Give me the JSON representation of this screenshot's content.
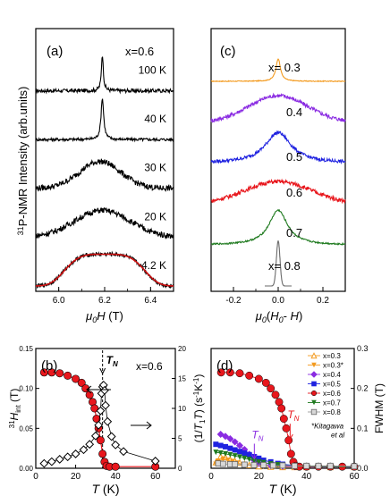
{
  "chart_data": [
    {
      "panel": "(a)",
      "type": "line",
      "annotation": "x=0.6",
      "xlabel": "μ0H (T)",
      "ylabel": "31P-NMR Intensity (arb.units)",
      "xlim": [
        5.9,
        6.5
      ],
      "xticks": [
        "6.0",
        "6.2",
        "6.4"
      ],
      "series": [
        {
          "name": "100 K",
          "color": "#000000",
          "center": 6.19,
          "width": 0.005,
          "offset": 4.0,
          "amp": 0.75,
          "noise": 0.04,
          "shape": "lorentz"
        },
        {
          "name": "40 K",
          "color": "#000000",
          "center": 6.19,
          "width": 0.007,
          "offset": 3.0,
          "amp": 0.85,
          "noise": 0.03,
          "shape": "lorentz"
        },
        {
          "name": "30 K",
          "color": "#000000",
          "center": 6.18,
          "width": 0.09,
          "offset": 2.0,
          "amp": 0.55,
          "noise": 0.06,
          "shape": "gauss"
        },
        {
          "name": "20 K",
          "color": "#000000",
          "center": 6.19,
          "width": 0.12,
          "offset": 1.0,
          "amp": 0.55,
          "noise": 0.06,
          "shape": "gauss"
        },
        {
          "name": "4.2 K",
          "color": "#000000",
          "center": 6.2,
          "width": 0.19,
          "offset": 0.0,
          "amp": 0.65,
          "noise": 0.04,
          "shape": "flat"
        }
      ],
      "fit": {
        "color": "#d01010",
        "label_of": "4.2 K"
      }
    },
    {
      "panel": "(c)",
      "type": "line",
      "xlabel": "μ0(H0- H)",
      "xlim": [
        -0.3,
        0.3
      ],
      "xticks": [
        "-0.2",
        "0.0",
        "0.2"
      ],
      "series": [
        {
          "name": "x= 0.3",
          "color": "#f39a1e",
          "center": 0.0,
          "width": 0.012,
          "offset": 5.0,
          "amp": 0.55,
          "noise": 0.01,
          "shape": "lorentz"
        },
        {
          "name": "0.4",
          "color": "#8a2be2",
          "center": 0.0,
          "width": 0.13,
          "offset": 4.0,
          "amp": 0.65,
          "noise": 0.05,
          "shape": "gauss"
        },
        {
          "name": "0.5",
          "color": "#1f22e0",
          "center": 0.0,
          "width": 0.07,
          "offset": 3.0,
          "amp": 0.75,
          "noise": 0.04,
          "shape": "lorentzwide"
        },
        {
          "name": "0.6",
          "color": "#e8171d",
          "center": 0.0,
          "width": 0.15,
          "offset": 2.0,
          "amp": 0.55,
          "noise": 0.05,
          "shape": "gauss"
        },
        {
          "name": "0.7",
          "color": "#1f7a1f",
          "center": 0.0,
          "width": 0.05,
          "offset": 1.0,
          "amp": 0.85,
          "noise": 0.02,
          "shape": "lorentzwide"
        },
        {
          "name": "x= 0.8",
          "color": "#6a6a6a",
          "center": 0.0,
          "width": 0.008,
          "offset": 0.0,
          "amp": 1.1,
          "noise": 0.0,
          "shape": "gauss",
          "xmin": -0.06,
          "xmax": 0.06
        }
      ]
    },
    {
      "panel": "(b)",
      "type": "scatter",
      "annotation": "x=0.6",
      "tn_label": "T",
      "tn_sub": "N",
      "xlabel": "T (K)",
      "ylabel_left": "31Hint (T)",
      "ylabel_right": "(1/T1T) (s-1K-1)",
      "xlim": [
        0,
        70
      ],
      "ylim_left": [
        0,
        0.15
      ],
      "ylim_right": [
        0,
        20
      ],
      "xticks": [
        "0",
        "20",
        "40",
        "60"
      ],
      "yticks_left": [
        "0.00",
        "0.05",
        "0.10",
        "0.15"
      ],
      "yticks_right": [
        "0",
        "5",
        "10",
        "15",
        "20"
      ],
      "tn_x": 33.5,
      "hint": {
        "x": [
          4.2,
          8,
          12,
          16,
          20,
          23,
          25,
          27,
          28.5,
          29.5,
          30.5,
          31.5,
          32.5,
          33.5,
          34.5,
          35.5,
          37,
          40,
          60
        ],
        "y": [
          0.12,
          0.12,
          0.119,
          0.116,
          0.112,
          0.107,
          0.1,
          0.092,
          0.083,
          0.075,
          0.062,
          0.05,
          0.035,
          0.018,
          0.008,
          0.003,
          0.002,
          0.002,
          0.002
        ],
        "color": "#e8171d"
      },
      "relax": {
        "x": [
          4.2,
          8,
          12,
          16,
          20,
          24,
          27,
          30,
          31.5,
          32.5,
          33,
          33.5,
          34,
          34.5,
          35,
          36,
          38,
          40,
          44,
          60
        ],
        "y": [
          0.8,
          1.1,
          1.5,
          1.9,
          2.4,
          3.1,
          4.0,
          5.4,
          7.2,
          9.6,
          12.5,
          13.6,
          13.9,
          13.0,
          10.5,
          7.8,
          5.3,
          3.9,
          2.8,
          1.2
        ]
      }
    },
    {
      "panel": "(d)",
      "type": "scatter",
      "xlabel": "T (K)",
      "ylabel_left": "(1/T1T) (s-1K-1)",
      "ylabel_right": "FWHM (T)",
      "xlim": [
        0,
        60
      ],
      "ylim_right": [
        0,
        0.3
      ],
      "xticks": [
        "0",
        "20",
        "40",
        "60"
      ],
      "yticks_right": [
        "0.0",
        "0.1",
        "0.2",
        "0.3"
      ],
      "tn_labels": [
        {
          "text": "T",
          "sub": "N",
          "x": 17,
          "y": 0.075,
          "color": "#8a2be2"
        },
        {
          "text": "T",
          "sub": "N",
          "x": 32,
          "y": 0.125,
          "color": "#e8171d"
        }
      ],
      "note": [
        "*Kitagawa",
        "et al"
      ],
      "series": [
        {
          "name": "x=0.3",
          "color": "#f39a1e",
          "marker": "triangle-up",
          "x": [
            2,
            4,
            6,
            8,
            10,
            12,
            14,
            16,
            20,
            25,
            30,
            35,
            40,
            50,
            60
          ],
          "y": [
            0.015,
            0.03,
            0.028,
            0.022,
            0.018,
            0.014,
            0.01,
            0.008,
            0.005,
            0.004,
            0.003,
            0.003,
            0.003,
            0.003,
            0.003
          ]
        },
        {
          "name": "x=0.3*",
          "color": "#f39a1e",
          "marker": "triangle-down",
          "x": [
            2,
            3,
            5,
            7,
            9,
            11,
            14,
            18,
            22,
            30,
            40
          ],
          "y": [
            0.01,
            0.018,
            0.022,
            0.02,
            0.017,
            0.013,
            0.009,
            0.006,
            0.005,
            0.004,
            0.003
          ]
        },
        {
          "name": "x=0.4",
          "color": "#8a2be2",
          "marker": "diamond",
          "x": [
            4,
            6,
            8,
            10,
            12,
            14,
            16,
            18,
            20,
            22,
            25,
            30,
            35,
            40,
            60
          ],
          "y": [
            0.085,
            0.08,
            0.074,
            0.066,
            0.057,
            0.047,
            0.035,
            0.02,
            0.012,
            0.009,
            0.007,
            0.005,
            0.004,
            0.003,
            0.003
          ]
        },
        {
          "name": "x=0.5",
          "color": "#1f22e0",
          "marker": "square",
          "x": [
            2,
            4,
            6,
            8,
            10,
            12,
            14,
            16,
            18,
            20,
            22,
            25,
            28,
            30,
            35,
            40,
            45,
            60
          ],
          "y": [
            0.06,
            0.057,
            0.054,
            0.05,
            0.046,
            0.042,
            0.038,
            0.034,
            0.029,
            0.025,
            0.02,
            0.016,
            0.012,
            0.01,
            0.007,
            0.005,
            0.004,
            0.003
          ]
        },
        {
          "name": "x=0.6",
          "color": "#e8171d",
          "marker": "circle",
          "x": [
            4.2,
            8,
            12,
            16,
            20,
            23,
            25,
            27,
            28.5,
            29.5,
            30.5,
            31.5,
            32.5,
            33.5,
            34.5,
            35.5,
            37,
            40,
            45,
            50,
            55,
            60
          ],
          "y": [
            0.24,
            0.24,
            0.238,
            0.232,
            0.224,
            0.214,
            0.2,
            0.184,
            0.166,
            0.15,
            0.124,
            0.1,
            0.07,
            0.036,
            0.016,
            0.006,
            0.004,
            0.004,
            0.004,
            0.004,
            0.004,
            0.004
          ]
        },
        {
          "name": "x=0.7",
          "color": "#1f7a1f",
          "marker": "triangle-down",
          "x": [
            2,
            4,
            6,
            8,
            10,
            12,
            14,
            16,
            18,
            20,
            22,
            25,
            28,
            30,
            35,
            40,
            50,
            60
          ],
          "y": [
            0.04,
            0.038,
            0.036,
            0.034,
            0.031,
            0.028,
            0.025,
            0.022,
            0.019,
            0.016,
            0.014,
            0.011,
            0.009,
            0.008,
            0.006,
            0.005,
            0.004,
            0.004
          ]
        },
        {
          "name": "x=0.8",
          "color": "#9a9a9a",
          "marker": "square-open",
          "x": [
            3,
            5,
            8,
            10,
            14,
            18,
            22,
            26,
            30,
            35,
            40,
            45,
            50,
            60
          ],
          "y": [
            0.012,
            0.011,
            0.01,
            0.01,
            0.009,
            0.008,
            0.008,
            0.007,
            0.007,
            0.006,
            0.006,
            0.006,
            0.006,
            0.005
          ]
        }
      ]
    }
  ]
}
